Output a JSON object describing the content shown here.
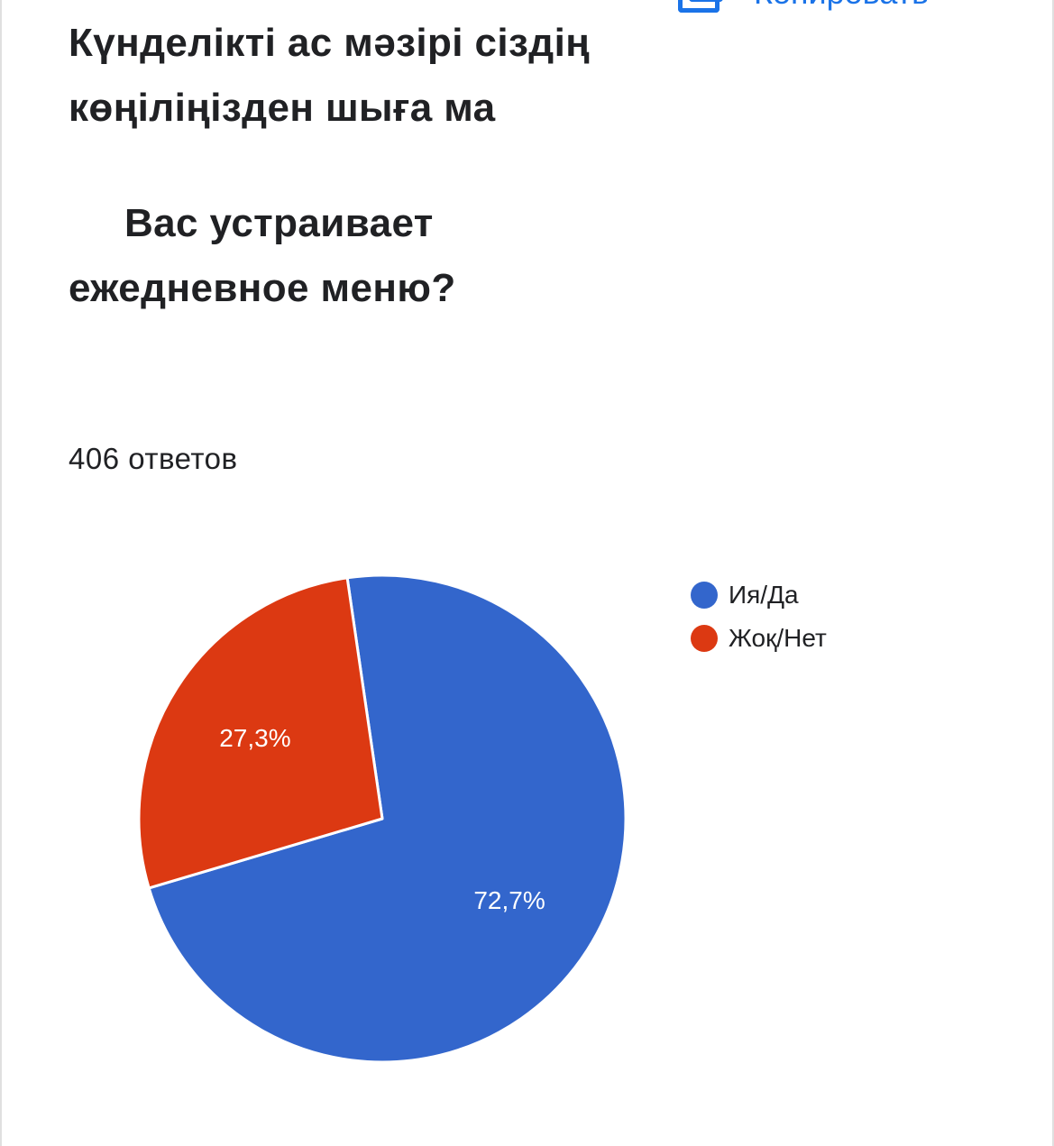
{
  "copy_button": {
    "label": "Копировать",
    "icon": "copy-icon",
    "color": "#1a73e8"
  },
  "question": {
    "title_kk": "Күнделікті ас мәзірі сіздің көңіліңізден шыға ма",
    "title_ru": "Вас устраивает ежедневное меню?",
    "responses": "406 ответов"
  },
  "chart_data": {
    "type": "pie",
    "categories": [
      "Ия/Да",
      "Жоқ/Нет"
    ],
    "values": [
      72.7,
      27.3
    ],
    "labels": [
      "72,7%",
      "27,3%"
    ],
    "colors": [
      "#3366cc",
      "#dc3912"
    ],
    "legend_position": "right"
  }
}
